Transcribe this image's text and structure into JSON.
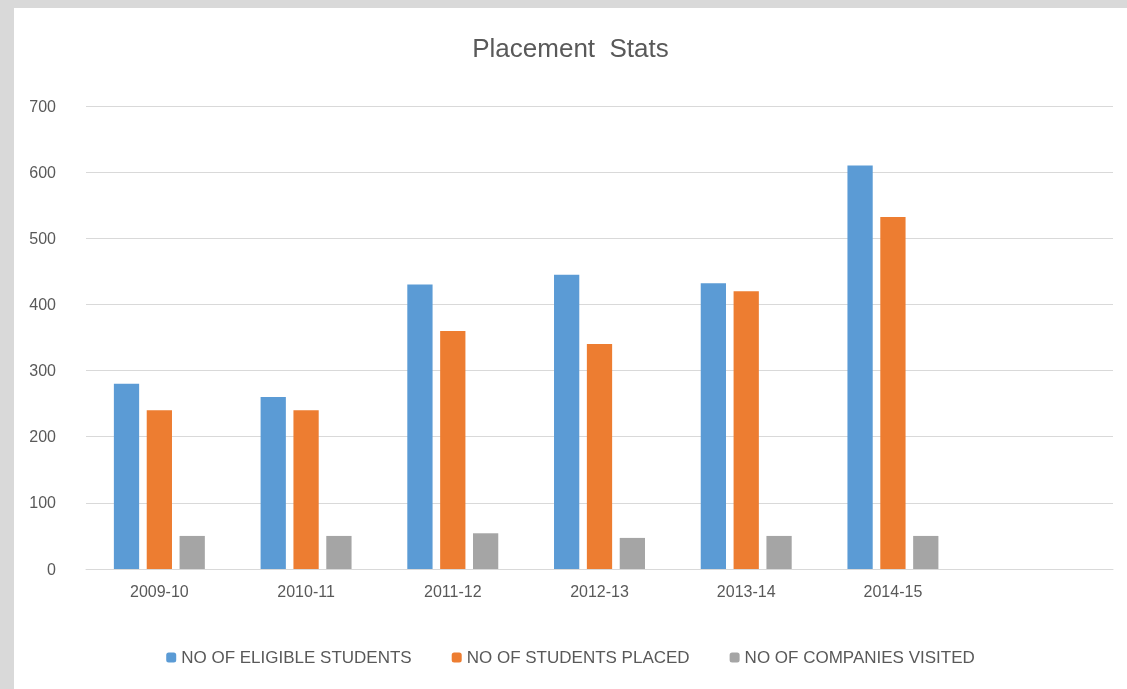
{
  "chart_data": {
    "type": "bar",
    "title": "Placement  Stats",
    "categories": [
      "2009-10",
      "2010-11",
      "2011-12",
      "2012-13",
      "2013-14",
      "2014-15",
      null
    ],
    "series": [
      {
        "name": "NO OF ELIGIBLE STUDENTS",
        "color": "#5b9bd5",
        "values": [
          280,
          260,
          430,
          445,
          432,
          610,
          null
        ]
      },
      {
        "name": "NO OF STUDENTS PLACED",
        "color": "#ed7d31",
        "values": [
          240,
          240,
          360,
          340,
          420,
          532,
          null
        ]
      },
      {
        "name": "NO OF COMPANIES VISITED",
        "color": "#a5a5a5",
        "values": [
          50,
          50,
          54,
          47,
          50,
          50,
          null
        ]
      }
    ],
    "ylim": [
      0,
      700
    ],
    "yticks": [
      0,
      100,
      200,
      300,
      400,
      500,
      600,
      700
    ],
    "grid": "y",
    "legend": "bottom"
  }
}
